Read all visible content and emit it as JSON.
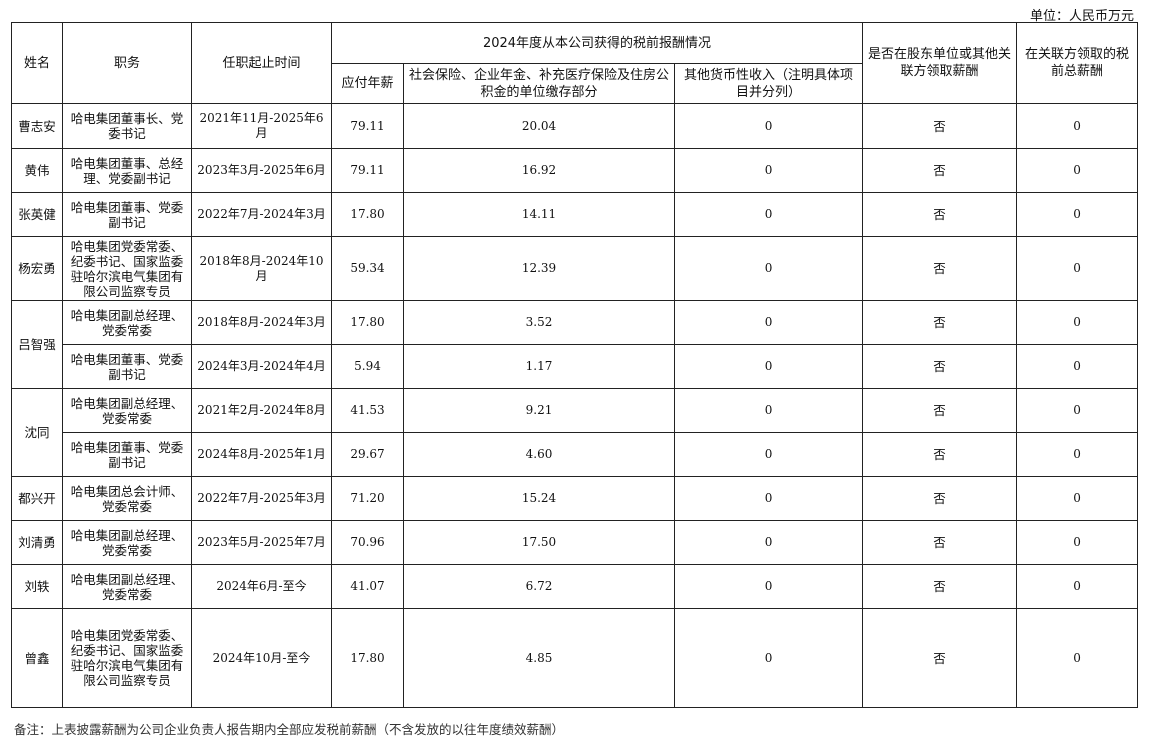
{
  "unit": "单位：人民币万元",
  "headers": {
    "name": "姓名",
    "position": "职务",
    "term": "任职起止时间",
    "group": "2024年度从本公司获得的税前报酬情况",
    "salary": "应付年薪",
    "insurance": "社会保险、企业年金、补充医疗保险及住房公积金的单位缴存部分",
    "other": "其他货币性收入（注明具体项目并分列）",
    "related": "是否在股东单位或其他关联方领取薪酬",
    "related_total": "在关联方领取的税前总薪酬"
  },
  "rows": [
    {
      "name": "曹志安",
      "position": "哈电集团董事长、党委书记",
      "term": "2021年11月-2025年6月",
      "salary": "79.11",
      "insurance": "20.04",
      "other": "0",
      "related": "否",
      "related_total": "0",
      "h": 45
    },
    {
      "name": "黄伟",
      "position": "哈电集团董事、总经理、党委副书记",
      "term": "2023年3月-2025年6月",
      "salary": "79.11",
      "insurance": "16.92",
      "other": "0",
      "related": "否",
      "related_total": "0",
      "h": 44
    },
    {
      "name": "张英健",
      "position": "哈电集团董事、党委副书记",
      "term": "2022年7月-2024年3月",
      "salary": "17.80",
      "insurance": "14.11",
      "other": "0",
      "related": "否",
      "related_total": "0",
      "h": 44
    },
    {
      "name": "杨宏勇",
      "position": "哈电集团党委常委、纪委书记、国家监委驻哈尔滨电气集团有限公司监察专员",
      "term": "2018年8月-2024年10月",
      "salary": "59.34",
      "insurance": "12.39",
      "other": "0",
      "related": "否",
      "related_total": "0",
      "h": 64
    },
    {
      "name": "吕智强",
      "rowspan": 2,
      "position": "哈电集团副总经理、党委常委",
      "term": "2018年8月-2024年3月",
      "salary": "17.80",
      "insurance": "3.52",
      "other": "0",
      "related": "否",
      "related_total": "0",
      "h": 44
    },
    {
      "position": "哈电集团董事、党委副书记",
      "term": "2024年3月-2024年4月",
      "salary": "5.94",
      "insurance": "1.17",
      "other": "0",
      "related": "否",
      "related_total": "0",
      "h": 44
    },
    {
      "name": "沈同",
      "rowspan": 2,
      "position": "哈电集团副总经理、党委常委",
      "term": "2021年2月-2024年8月",
      "salary": "41.53",
      "insurance": "9.21",
      "other": "0",
      "related": "否",
      "related_total": "0",
      "h": 44
    },
    {
      "position": "哈电集团董事、党委副书记",
      "term": "2024年8月-2025年1月",
      "salary": "29.67",
      "insurance": "4.60",
      "other": "0",
      "related": "否",
      "related_total": "0",
      "h": 44
    },
    {
      "name": "都兴开",
      "position": "哈电集团总会计师、党委常委",
      "term": "2022年7月-2025年3月",
      "salary": "71.20",
      "insurance": "15.24",
      "other": "0",
      "related": "否",
      "related_total": "0",
      "h": 44
    },
    {
      "name": "刘清勇",
      "position": "哈电集团副总经理、党委常委",
      "term": "2023年5月-2025年7月",
      "salary": "70.96",
      "insurance": "17.50",
      "other": "0",
      "related": "否",
      "related_total": "0",
      "h": 44
    },
    {
      "name": "刘轶",
      "position": "哈电集团副总经理、党委常委",
      "term": "2024年6月-至今",
      "salary": "41.07",
      "insurance": "6.72",
      "other": "0",
      "related": "否",
      "related_total": "0",
      "h": 44
    },
    {
      "name": "曾鑫",
      "position": "哈电集团党委常委、纪委书记、国家监委驻哈尔滨电气集团有限公司监察专员",
      "term": "2024年10月-至今",
      "salary": "17.80",
      "insurance": "4.85",
      "other": "0",
      "related": "否",
      "related_total": "0",
      "h": 99
    }
  ],
  "note": "备注：上表披露薪酬为公司企业负责人报告期内全部应发税前薪酬（不含发放的以往年度绩效薪酬）"
}
